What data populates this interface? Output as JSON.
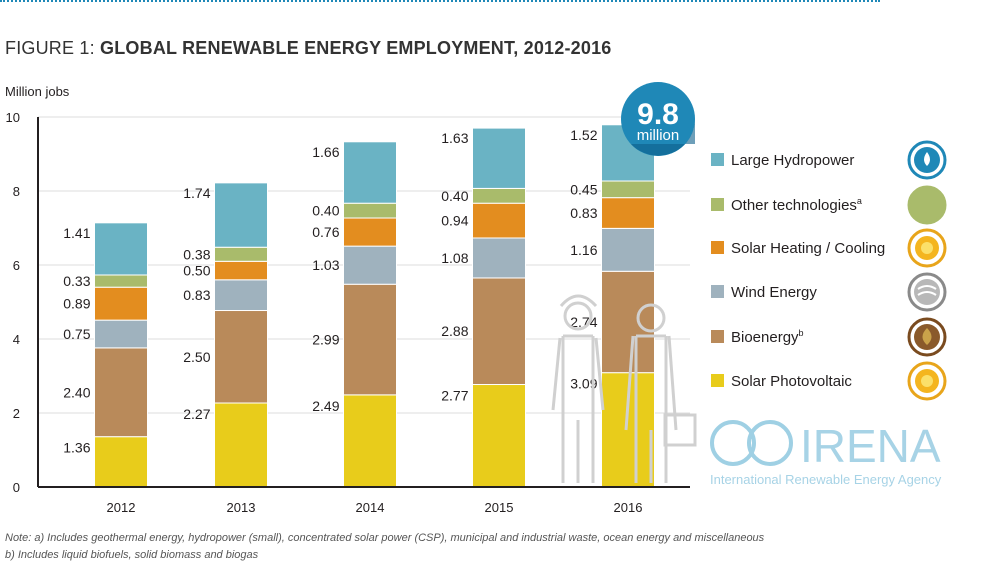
{
  "title": {
    "figure_prefix": "FIGURE 1:",
    "main": "GLOBAL RENEWABLE ENERGY EMPLOYMENT, 2012-2016"
  },
  "badge": {
    "value": "9.8",
    "unit": "million"
  },
  "logo": {
    "text": "IRENA",
    "subtitle": "International Renewable Energy Agency"
  },
  "notes": [
    "Note: a) Includes geothermal energy, hydropower (small), concentrated solar power (CSP), municipal and industrial waste, ocean energy and miscellaneous",
    "b) Includes liquid biofuels, solid biomass and biogas"
  ],
  "chart_data": {
    "type": "bar",
    "stacked": true,
    "ylabel": "Million jobs",
    "ylim": [
      0,
      10
    ],
    "yticks": [
      0,
      2,
      4,
      6,
      8,
      10
    ],
    "categories": [
      "2012",
      "2013",
      "2014",
      "2015",
      "2016"
    ],
    "grid": true,
    "legend_position": "right",
    "series": [
      {
        "name": "Solar Photovoltaic",
        "color": "#e8cc1b",
        "values": [
          1.36,
          2.27,
          2.49,
          2.77,
          3.09
        ]
      },
      {
        "name": "Bioenergy",
        "sup": "b",
        "color": "#b98a5a",
        "values": [
          2.4,
          2.5,
          2.99,
          2.88,
          2.74
        ]
      },
      {
        "name": "Wind Energy",
        "color": "#9fb2be",
        "values": [
          0.75,
          0.83,
          1.03,
          1.08,
          1.16
        ]
      },
      {
        "name": "Solar Heating / Cooling",
        "color": "#e38d1f",
        "values": [
          0.89,
          0.5,
          0.76,
          0.94,
          0.83
        ]
      },
      {
        "name": "Other technologies",
        "sup": "a",
        "color": "#a9bb6b",
        "values": [
          0.33,
          0.38,
          0.4,
          0.4,
          0.45
        ]
      },
      {
        "name": "Large Hydropower",
        "color": "#6ab3c4",
        "values": [
          1.41,
          1.74,
          1.66,
          1.63,
          1.52
        ]
      }
    ],
    "data_labels": [
      [
        "1.36",
        "2.27",
        "2.49",
        "2.77",
        "3.09"
      ],
      [
        "2.40",
        "2.50",
        "2.99",
        "2.88",
        "2.74"
      ],
      [
        "0.75",
        "0.83",
        "1.03",
        "1.08",
        "1.16"
      ],
      [
        "0.89",
        "0.50",
        "0.76",
        "0.94",
        "0.83"
      ],
      [
        "0.33",
        "0.38",
        "0.40",
        "0.40",
        "0.45"
      ],
      [
        "1.41",
        "1.74",
        "1.66",
        "1.63",
        "1.52"
      ]
    ],
    "legend_order": [
      "Large Hydropower",
      "Other technologies",
      "Solar Heating / Cooling",
      "Wind Energy",
      "Bioenergy",
      "Solar Photovoltaic"
    ],
    "legend_icons": [
      "water-drop-icon",
      "plain-circle-icon",
      "sun-icon",
      "wind-icon",
      "leaf-icon",
      "sun-icon"
    ]
  }
}
